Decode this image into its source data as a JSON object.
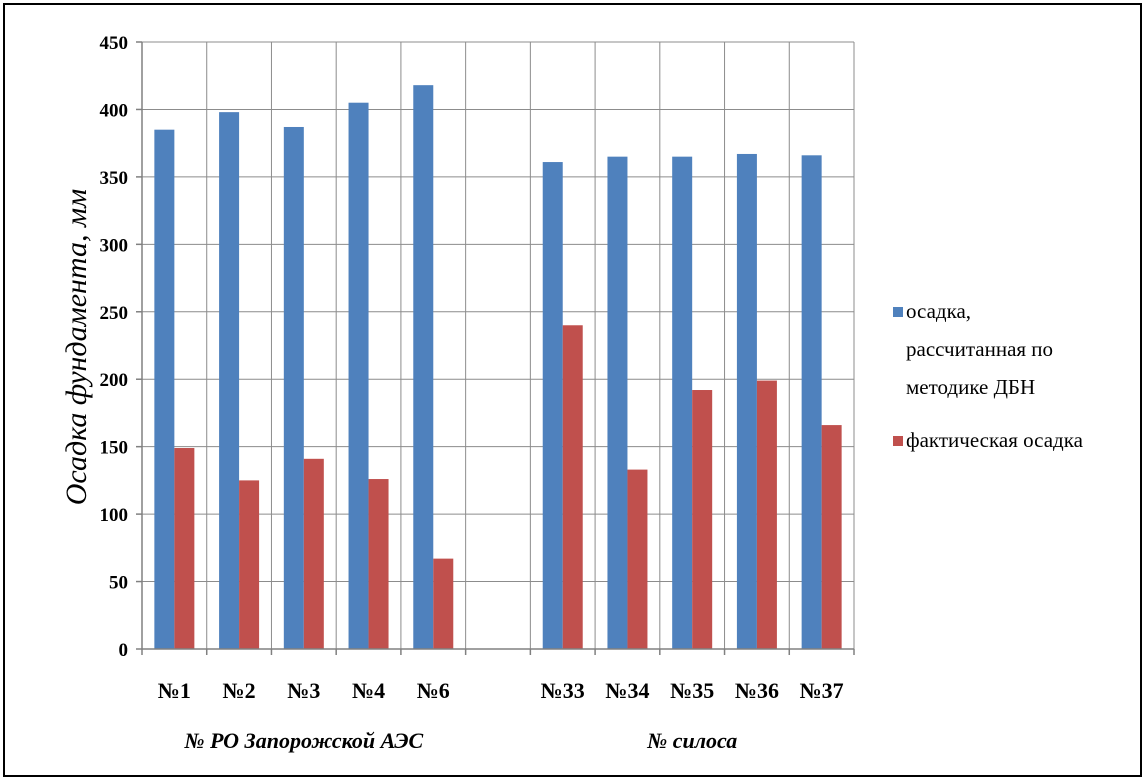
{
  "chart_data": {
    "type": "bar",
    "categories": [
      "№1",
      "№2",
      "№3",
      "№4",
      "№6",
      "",
      "№33",
      "№34",
      "№35",
      "№36",
      "№37"
    ],
    "group_labels": [
      "№ РО Запорожской АЭС",
      "№ силоса"
    ],
    "series": [
      {
        "name": "осадка, рассчитанная по методике ДБН",
        "color": "#4f81bd",
        "values": [
          385,
          398,
          387,
          405,
          418,
          null,
          361,
          365,
          365,
          367,
          366
        ]
      },
      {
        "name": "фактическая осадка",
        "color": "#c0504d",
        "values": [
          149,
          125,
          141,
          126,
          67,
          null,
          240,
          133,
          192,
          199,
          166
        ]
      }
    ],
    "ylabel": "Осадка фундамента, мм",
    "xlabel": "",
    "ylim": [
      0,
      450
    ],
    "yticks": [
      0,
      50,
      100,
      150,
      200,
      250,
      300,
      350,
      400,
      450
    ],
    "grid": true,
    "legend_position": "right"
  }
}
